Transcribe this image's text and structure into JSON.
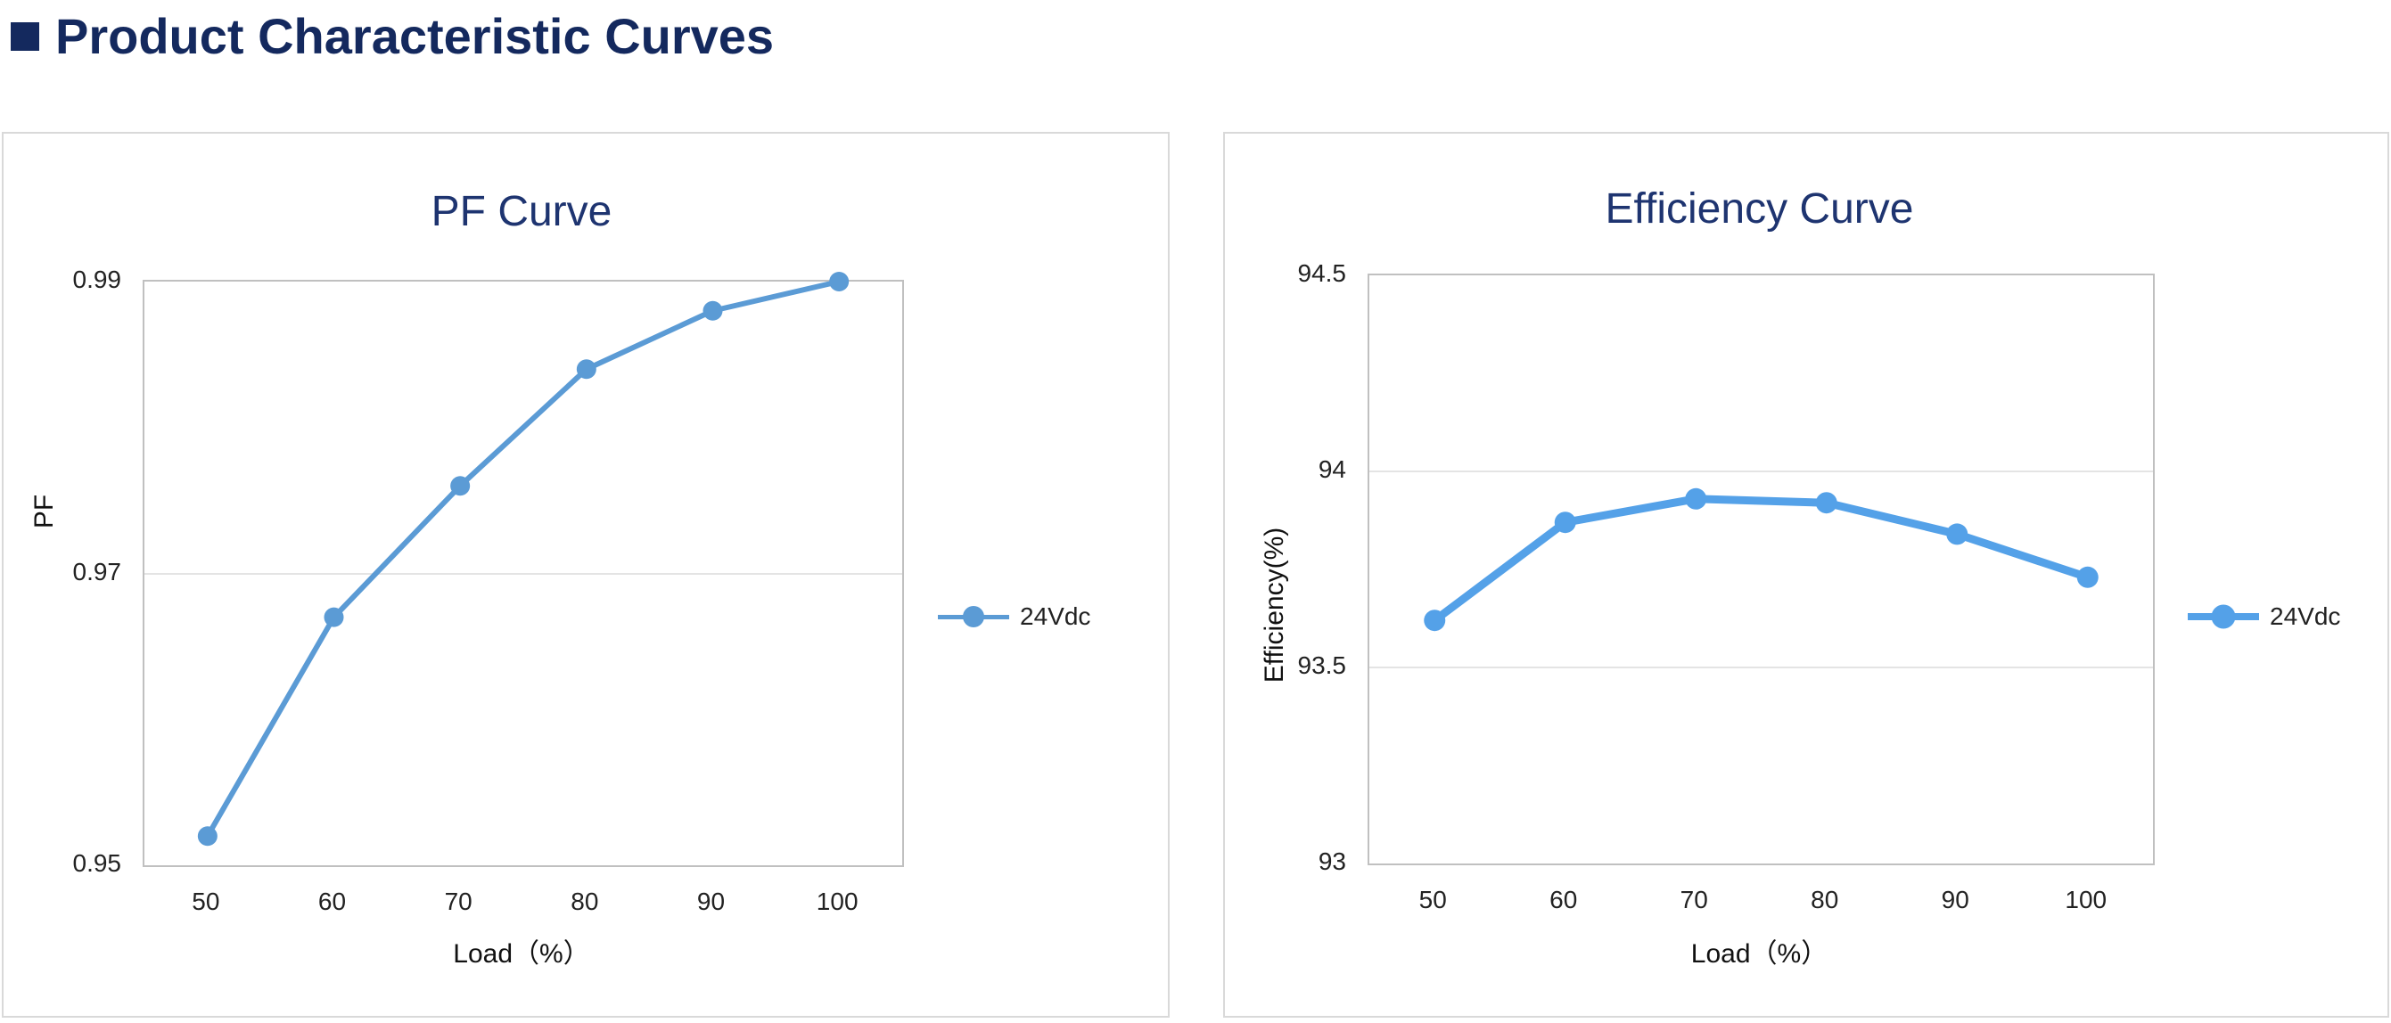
{
  "page": {
    "heading": "Product Characteristic Curves"
  },
  "colors": {
    "heading_navy": "#14295E",
    "chart_title_navy": "#1E3470",
    "pf_line": "#5B9BD5",
    "efficiency_line": "#54A1E8"
  },
  "chart_data": [
    {
      "type": "line",
      "title": "PF Curve",
      "xlabel": "Load（%）",
      "ylabel": "PF",
      "categories": [
        50,
        60,
        70,
        80,
        90,
        100
      ],
      "series": [
        {
          "name": "24Vdc",
          "values": [
            0.952,
            0.967,
            0.976,
            0.984,
            0.988,
            0.99
          ]
        }
      ],
      "ylim": [
        0.95,
        0.99
      ],
      "yticks": [
        0.95,
        0.97,
        0.99
      ],
      "ytick_labels": [
        "0.95",
        "0.97",
        "0.99"
      ],
      "grid": "horizontal-interior",
      "legend_position": "right",
      "line_color": "#5B9BD5"
    },
    {
      "type": "line",
      "title": "Efficiency Curve",
      "xlabel": "Load（%）",
      "ylabel": "Efficiency(%)",
      "categories": [
        50,
        60,
        70,
        80,
        90,
        100
      ],
      "series": [
        {
          "name": "24Vdc",
          "values": [
            93.62,
            93.87,
            93.93,
            93.92,
            93.84,
            93.73
          ]
        }
      ],
      "ylim": [
        93,
        94.5
      ],
      "yticks": [
        93,
        93.5,
        94,
        94.5
      ],
      "ytick_labels": [
        "93",
        "93.5",
        "94",
        "94.5"
      ],
      "grid": "horizontal-interior",
      "legend_position": "right",
      "line_color": "#54A1E8"
    }
  ]
}
